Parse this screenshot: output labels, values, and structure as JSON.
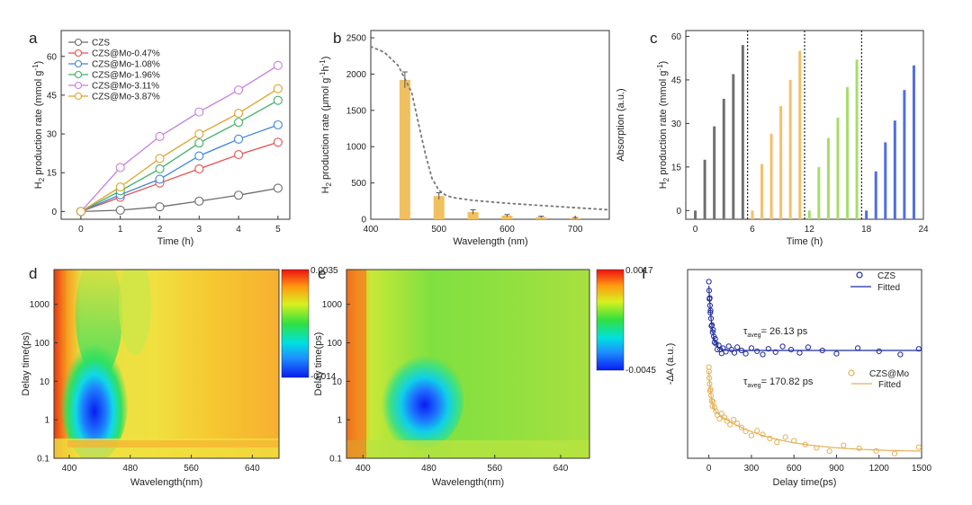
{
  "colors": {
    "CZS": "#6b6b6b",
    "Mo047": "#e5504f",
    "Mo108": "#3f86d6",
    "Mo196": "#3fb06b",
    "Mo311": "#c77ee0",
    "Mo387": "#e0a22c",
    "bar_b": "#f0c060",
    "c_gray": "#707070",
    "c_orange": "#f4c06a",
    "c_green": "#a6dd6a",
    "c_blue": "#4f6fe0",
    "f_czs": "#1e2aa0",
    "f_mo": "#e6b053"
  },
  "chart_data": [
    {
      "panel": "a",
      "type": "line",
      "xlabel": "Time (h)",
      "ylabel": "H2 production rate (mmol g-1)",
      "xlim": [
        -0.5,
        5.3
      ],
      "ylim": [
        -3,
        70
      ],
      "xticks": [
        "0",
        "1",
        "2",
        "3",
        "4",
        "5"
      ],
      "yticks": [
        "0",
        "15",
        "30",
        "45",
        "60",
        "75"
      ],
      "x": [
        0,
        1,
        2,
        3,
        4,
        5
      ],
      "series": [
        {
          "name": "CZS",
          "color_key": "CZS",
          "values": [
            0,
            0.5,
            1.8,
            4,
            6.3,
            9
          ]
        },
        {
          "name": "CZS@Mo-0.47%",
          "color_key": "Mo047",
          "values": [
            0,
            5.5,
            11,
            16.5,
            22,
            26.8
          ]
        },
        {
          "name": "CZS@Mo-1.08%",
          "color_key": "Mo108",
          "values": [
            0,
            6.5,
            12.5,
            21.5,
            28,
            33.5
          ]
        },
        {
          "name": "CZS@Mo-1.96%",
          "color_key": "Mo196",
          "values": [
            0,
            8,
            16.5,
            26.5,
            34.5,
            43
          ]
        },
        {
          "name": "CZS@Mo-3.11%",
          "color_key": "Mo311",
          "values": [
            0,
            17,
            29,
            38.5,
            47,
            56.5
          ]
        },
        {
          "name": "CZS@Mo-3.87%",
          "color_key": "Mo387",
          "values": [
            0,
            9.5,
            20.5,
            30,
            38,
            47.5
          ]
        }
      ]
    },
    {
      "panel": "b",
      "type": "bar",
      "xlabel": "Wavelength (nm)",
      "ylabel": "H2 production rate (μmol g-1h-1)",
      "ylabel_right": "Absorption (a.u.)",
      "xlim": [
        400,
        750
      ],
      "ylim": [
        0,
        2600
      ],
      "xticks": [
        "400",
        "500",
        "600",
        "700"
      ],
      "yticks": [
        "0",
        "500",
        "1000",
        "1500",
        "2000",
        "2500"
      ],
      "bars": [
        {
          "x": 450,
          "value": 1920,
          "err": 110
        },
        {
          "x": 500,
          "value": 320,
          "err": 45
        },
        {
          "x": 550,
          "value": 100,
          "err": 30
        },
        {
          "x": 600,
          "value": 50,
          "err": 15
        },
        {
          "x": 650,
          "value": 30,
          "err": 12
        },
        {
          "x": 700,
          "value": 15,
          "err": 8
        }
      ],
      "absorption_curve": {
        "x": [
          400,
          420,
          440,
          460,
          470,
          480,
          490,
          500,
          510,
          520,
          550,
          600,
          650,
          700,
          750
        ],
        "y": [
          2380,
          2300,
          2120,
          1750,
          1320,
          900,
          560,
          400,
          330,
          300,
          260,
          220,
          190,
          160,
          130
        ]
      }
    },
    {
      "panel": "c",
      "type": "bar",
      "xlabel": "Time (h)",
      "ylabel": "H2 production rate (mmol g-1)",
      "xlim": [
        -1,
        24
      ],
      "ylim": [
        -3,
        62
      ],
      "xticks": [
        "0",
        "6",
        "12",
        "18",
        "24"
      ],
      "yticks": [
        "0",
        "15",
        "30",
        "45",
        "60"
      ],
      "dividers": [
        5.5,
        11.5,
        17.5
      ],
      "cycles": [
        {
          "color_key": "c_gray",
          "x": [
            0,
            1,
            2,
            3,
            4,
            5
          ],
          "values": [
            0,
            17.5,
            29,
            38.5,
            47,
            57
          ]
        },
        {
          "color_key": "c_orange",
          "x": [
            6,
            7,
            8,
            9,
            10,
            11
          ],
          "values": [
            0,
            16,
            26.5,
            36,
            45,
            55
          ]
        },
        {
          "color_key": "c_green",
          "x": [
            12,
            13,
            14,
            15,
            16,
            17
          ],
          "values": [
            0,
            15,
            25,
            32,
            42.5,
            52
          ]
        },
        {
          "color_key": "c_blue",
          "x": [
            18,
            19,
            20,
            21,
            22,
            23
          ],
          "values": [
            0,
            13.5,
            23.5,
            31,
            41.5,
            50
          ]
        }
      ]
    },
    {
      "panel": "d",
      "type": "heatmap",
      "xlabel": "Wavelength(nm)",
      "ylabel": "Delay time(ps)",
      "xlim": [
        380,
        675
      ],
      "ylog": true,
      "ylim": [
        0.1,
        8000
      ],
      "xticks": [
        400,
        480,
        560,
        640
      ],
      "yticks": [
        "0.1",
        "1",
        "10",
        "100",
        "1000"
      ],
      "colorbar": {
        "max": "0.0035",
        "min": "-0.014"
      }
    },
    {
      "panel": "e",
      "type": "heatmap",
      "xlabel": "Wavelength(nm)",
      "ylabel": "Delay time(ps)",
      "xlim": [
        380,
        675
      ],
      "ylog": true,
      "ylim": [
        0.1,
        8000
      ],
      "xticks": [
        400,
        480,
        560,
        640
      ],
      "yticks": [
        "0.1",
        "1",
        "10",
        "100",
        "1000"
      ],
      "colorbar": {
        "max": "0.0017",
        "min": "-0.0045"
      }
    },
    {
      "panel": "f",
      "type": "scatter",
      "xlabel": "Delay time(ps)",
      "ylabel": "-ΔA (a.u.)",
      "xlim": [
        -150,
        1500
      ],
      "xticks": [
        "0",
        "300",
        "600",
        "900",
        "1200",
        "1500"
      ],
      "series": [
        {
          "name": "CZS",
          "fit_name": "Fitted",
          "color_key": "f_czs",
          "tau_label": "τaveg = 26.13 ps"
        },
        {
          "name": "CZS@Mo",
          "fit_name": "Fitted",
          "color_key": "f_mo",
          "tau_label": "τaveg = 170.82 ps"
        }
      ]
    }
  ],
  "labels": {
    "a": "a",
    "b": "b",
    "c": "c",
    "d": "d",
    "e": "e",
    "f": "f",
    "a_xlabel": "Time (h)",
    "b_xlabel": "Wavelength (nm)",
    "b_ylabel_right": "Absorption (a.u.)",
    "c_xlabel": "Time (h)",
    "d_xlabel": "Wavelength(nm)",
    "d_ylabel": "Delay time(ps)",
    "e_xlabel": "Wavelength(nm)",
    "e_ylabel": "Delay time(ps)",
    "f_xlabel": "Delay time(ps)",
    "f_ylabel": "-ΔA (a.u.)",
    "d_cb_max": "0.0035",
    "d_cb_min": "-0.014",
    "e_cb_max": "0.0017",
    "e_cb_min": "-0.0045",
    "f_leg_czs": "CZS",
    "f_leg_czs_fit": "Fitted",
    "f_leg_mo": "CZS@Mo",
    "f_leg_mo_fit": "Fitted",
    "f_tau1_val": "= 26.13 ps",
    "f_tau2_val": "= 170.82 ps"
  }
}
